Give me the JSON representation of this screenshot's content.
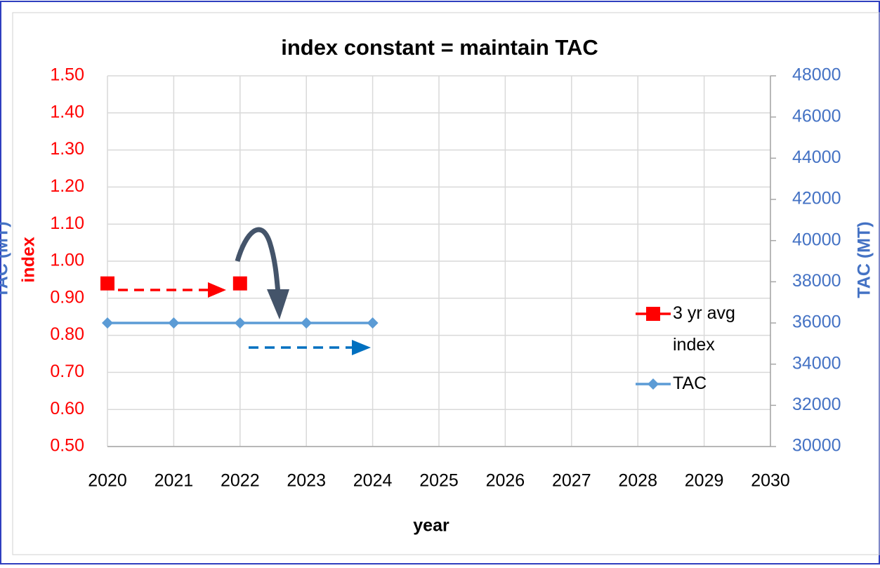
{
  "chart_data": {
    "type": "line",
    "title": "index constant = maintain TAC",
    "xlabel": "year",
    "ylabel": "index",
    "y2label": "TAC (MT)",
    "x": [
      2020,
      2021,
      2022,
      2023,
      2024
    ],
    "series": [
      {
        "name": "3 yr avg index",
        "color": "#ff0000",
        "marker": "square",
        "values": [
          0.94,
          null,
          0.94,
          null,
          null
        ]
      },
      {
        "name": "TAC",
        "color": "#5b9bd5",
        "marker": "diamond",
        "axis": "y2",
        "values": [
          36000,
          36000,
          36000,
          36000,
          36000
        ]
      }
    ],
    "xlim": [
      2020,
      2030
    ],
    "xticks": [
      2020,
      2021,
      2022,
      2023,
      2024,
      2025,
      2026,
      2027,
      2028,
      2029,
      2030
    ],
    "ylim": [
      0.5,
      1.5
    ],
    "yticks": [
      {
        "value": 0.5,
        "label": "0.50"
      },
      {
        "value": 0.6,
        "label": "0.60"
      },
      {
        "value": 0.7,
        "label": "0.70"
      },
      {
        "value": 0.8,
        "label": "0.80"
      },
      {
        "value": 0.9,
        "label": "0.90"
      },
      {
        "value": 1.0,
        "label": "1.00"
      },
      {
        "value": 1.1,
        "label": "1.10"
      },
      {
        "value": 1.2,
        "label": "1.20"
      },
      {
        "value": 1.3,
        "label": "1.30"
      },
      {
        "value": 1.4,
        "label": "1.40"
      },
      {
        "value": 1.5,
        "label": "1.50"
      }
    ],
    "y2lim": [
      30000,
      48000
    ],
    "y2ticks": [
      30000,
      32000,
      34000,
      36000,
      38000,
      40000,
      42000,
      44000,
      46000,
      48000
    ],
    "grid": true,
    "legend": "right"
  }
}
